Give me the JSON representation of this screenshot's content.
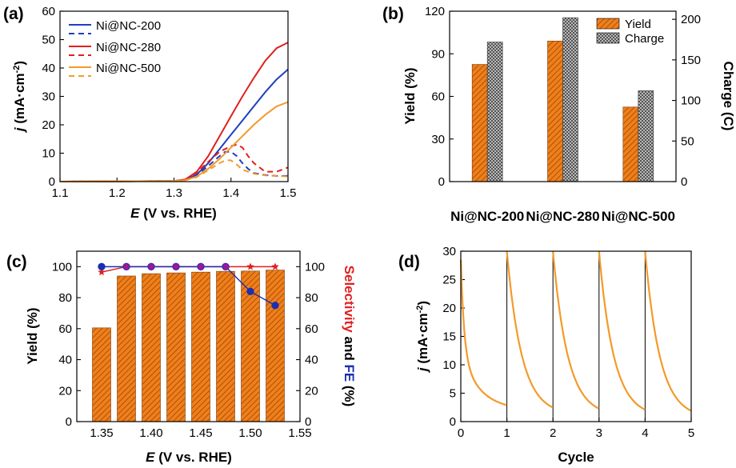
{
  "colors": {
    "blue": "#1f3fbf",
    "red": "#e02020",
    "orange": "#f39a2a",
    "bar_orange": "#f07f1a",
    "bar_gray": "#8c8c8c",
    "dark_blue": "#1c2fb0",
    "purple": "#a0159a"
  },
  "chart_data": [
    {
      "panel": "(a)",
      "type": "line",
      "xlabel_var": "E",
      "xlabel_rest": " (V vs. RHE)",
      "ylabel_var": "j",
      "ylabel_rest": " (mA·cm",
      "ylabel_sup": "-2",
      "ylabel_end": ")",
      "xlim": [
        1.1,
        1.5
      ],
      "ylim": [
        0,
        60
      ],
      "xticks": [
        "1.1",
        "1.2",
        "1.3",
        "1.4",
        "1.5"
      ],
      "yticks": [
        "0",
        "10",
        "20",
        "30",
        "40",
        "50",
        "60"
      ],
      "legend": [
        "Ni@NC-200",
        "Ni@NC-280",
        "Ni@NC-500"
      ],
      "series": [
        {
          "name": "Ni@NC-200 (solid)",
          "color": "blue",
          "dash": false,
          "x": [
            1.1,
            1.3,
            1.32,
            1.34,
            1.36,
            1.38,
            1.4,
            1.42,
            1.44,
            1.46,
            1.48,
            1.5
          ],
          "y": [
            0,
            0.2,
            0.6,
            2.5,
            6.5,
            11.5,
            16.5,
            21.5,
            26.5,
            31.5,
            36,
            39.5
          ]
        },
        {
          "name": "Ni@NC-200 (dashed)",
          "color": "blue",
          "dash": true,
          "x": [
            1.1,
            1.3,
            1.32,
            1.34,
            1.36,
            1.38,
            1.39,
            1.4,
            1.41,
            1.42,
            1.43,
            1.44,
            1.46,
            1.48,
            1.5
          ],
          "y": [
            0,
            0.2,
            0.6,
            2.3,
            5.5,
            9,
            10.5,
            10.5,
            9,
            6.5,
            4.5,
            3,
            2.3,
            2,
            2
          ]
        },
        {
          "name": "Ni@NC-280 (solid)",
          "color": "red",
          "dash": false,
          "x": [
            1.1,
            1.3,
            1.32,
            1.34,
            1.36,
            1.38,
            1.4,
            1.42,
            1.44,
            1.46,
            1.48,
            1.5
          ],
          "y": [
            0,
            0.2,
            0.8,
            3.5,
            9,
            16,
            23,
            30,
            36.5,
            42.5,
            47,
            49
          ]
        },
        {
          "name": "Ni@NC-280 (dashed)",
          "color": "red",
          "dash": true,
          "x": [
            1.1,
            1.3,
            1.32,
            1.34,
            1.36,
            1.38,
            1.4,
            1.41,
            1.42,
            1.43,
            1.44,
            1.46,
            1.48,
            1.5
          ],
          "y": [
            0,
            0.2,
            0.8,
            3.2,
            7,
            10.5,
            12.5,
            13,
            12,
            9,
            6.5,
            3.5,
            3.5,
            5
          ]
        },
        {
          "name": "Ni@NC-500 (solid)",
          "color": "orange",
          "dash": false,
          "x": [
            1.1,
            1.3,
            1.32,
            1.34,
            1.36,
            1.38,
            1.4,
            1.42,
            1.44,
            1.46,
            1.48,
            1.5
          ],
          "y": [
            0,
            0.2,
            0.5,
            1.8,
            4.5,
            8,
            12,
            16,
            20,
            23.5,
            26.5,
            28
          ]
        },
        {
          "name": "Ni@NC-500 (dashed)",
          "color": "orange",
          "dash": true,
          "x": [
            1.1,
            1.3,
            1.32,
            1.34,
            1.36,
            1.38,
            1.39,
            1.4,
            1.41,
            1.42,
            1.44,
            1.46,
            1.48,
            1.5
          ],
          "y": [
            0,
            0.2,
            0.5,
            1.6,
            4,
            6.5,
            7.5,
            7.5,
            6,
            4.2,
            2.8,
            2.2,
            2,
            1.8
          ]
        }
      ]
    },
    {
      "panel": "(b)",
      "type": "bar",
      "categories": [
        "Ni@NC-200",
        "Ni@NC-280",
        "Ni@NC-500"
      ],
      "ylabel": "Yield (%)",
      "ylabel2": "Charge (C)",
      "ylim": [
        0,
        120
      ],
      "ylim2": [
        0,
        210
      ],
      "yticks": [
        "0",
        "30",
        "60",
        "90",
        "120"
      ],
      "yticks2": [
        "0",
        "50",
        "100",
        "150",
        "200"
      ],
      "legend": [
        "Yield",
        "Charge"
      ],
      "series": [
        {
          "name": "Yield",
          "axis": "left",
          "values": [
            82.5,
            99,
            52.5
          ]
        },
        {
          "name": "Charge",
          "axis": "right",
          "values": [
            172,
            202,
            112
          ]
        }
      ]
    },
    {
      "panel": "(c)",
      "type": "bar",
      "xlabel_var": "E",
      "xlabel_rest": " (V vs. RHE)",
      "ylabel": "Yield (%)",
      "ylabel2_red": "Selectivity",
      "ylabel2_and": " and ",
      "ylabel2_blue": "FE",
      "ylabel2_end": " (%)",
      "xlim": [
        1.325,
        1.55
      ],
      "ylim": [
        0,
        110
      ],
      "xticks": [
        "1.35",
        "1.40",
        "1.45",
        "1.50",
        "1.55"
      ],
      "yticks": [
        "0",
        "20",
        "40",
        "60",
        "80",
        "100"
      ],
      "yticks2": [
        "0",
        "20",
        "40",
        "60",
        "80",
        "100"
      ],
      "x": [
        1.35,
        1.375,
        1.4,
        1.425,
        1.45,
        1.475,
        1.5,
        1.525
      ],
      "series": [
        {
          "name": "Yield",
          "type": "bar",
          "values": [
            60.5,
            94,
            95.5,
            96,
            96.5,
            97,
            97.2,
            97.8
          ]
        },
        {
          "name": "Selectivity",
          "type": "line",
          "marker": "star",
          "values": [
            96.5,
            100,
            100,
            100,
            100,
            100,
            100,
            100
          ]
        },
        {
          "name": "FE",
          "type": "line",
          "marker": "circle",
          "values": [
            100,
            100,
            100,
            100,
            100,
            100,
            84,
            75
          ]
        }
      ]
    },
    {
      "panel": "(d)",
      "type": "line",
      "xlabel": "Cycle",
      "ylabel_var": "j",
      "ylabel_rest": " (mA·cm",
      "ylabel_sup": "-2",
      "ylabel_end": ")",
      "xlim": [
        0,
        5
      ],
      "ylim": [
        0,
        30
      ],
      "xticks": [
        "0",
        "1",
        "2",
        "3",
        "4",
        "5"
      ],
      "yticks": [
        "0",
        "5",
        "10",
        "15",
        "20",
        "25",
        "30"
      ],
      "cycles": 5,
      "cycle_start": [
        28.5,
        30,
        30,
        30,
        30
      ],
      "cycle_end": [
        2,
        1.2,
        1,
        0.8,
        0.6
      ]
    }
  ]
}
